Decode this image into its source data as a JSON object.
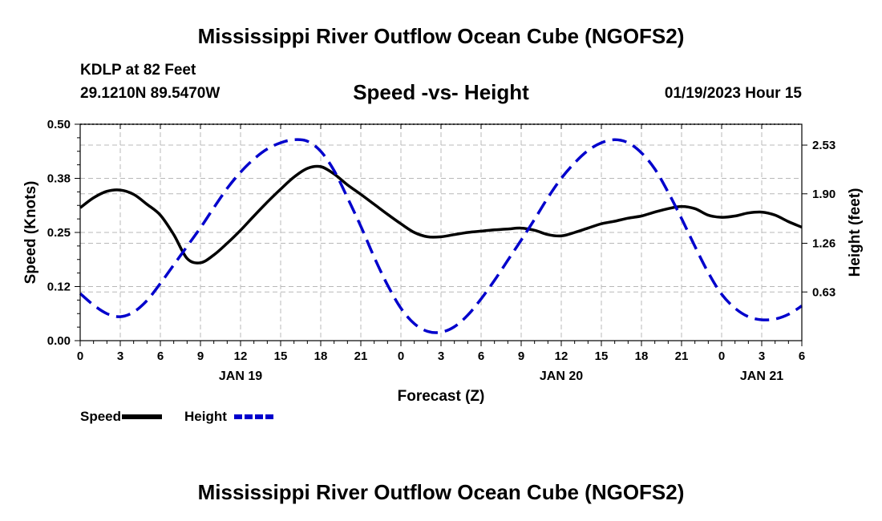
{
  "header": {
    "title": "Mississippi River Outflow Ocean Cube (NGOFS2)",
    "station": "KDLP at 82 Feet",
    "coords": "29.1210N  89.5470W",
    "subtitle": "Speed -vs- Height",
    "timestamp": "01/19/2023 Hour 15"
  },
  "footer": {
    "title": "Mississippi River Outflow Ocean Cube (NGOFS2)"
  },
  "chart_data": {
    "type": "line",
    "xlabel": "Forecast (Z)",
    "x_range": [
      0,
      54
    ],
    "x_ticks": [
      {
        "x": 0,
        "label": "0"
      },
      {
        "x": 3,
        "label": "3"
      },
      {
        "x": 6,
        "label": "6"
      },
      {
        "x": 9,
        "label": "9"
      },
      {
        "x": 12,
        "label": "12"
      },
      {
        "x": 15,
        "label": "15"
      },
      {
        "x": 18,
        "label": "18"
      },
      {
        "x": 21,
        "label": "21"
      },
      {
        "x": 24,
        "label": "0"
      },
      {
        "x": 27,
        "label": "3"
      },
      {
        "x": 30,
        "label": "6"
      },
      {
        "x": 33,
        "label": "9"
      },
      {
        "x": 36,
        "label": "12"
      },
      {
        "x": 39,
        "label": "15"
      },
      {
        "x": 42,
        "label": "18"
      },
      {
        "x": 45,
        "label": "21"
      },
      {
        "x": 48,
        "label": "0"
      },
      {
        "x": 51,
        "label": "3"
      },
      {
        "x": 54,
        "label": "6"
      }
    ],
    "date_labels": [
      {
        "x": 12,
        "label": "JAN 19"
      },
      {
        "x": 36,
        "label": "JAN 20"
      },
      {
        "x": 51,
        "label": "JAN 21"
      }
    ],
    "y_left": {
      "label": "Speed (Knots)",
      "range": [
        0,
        0.5
      ],
      "ticks": [
        0.0,
        0.125,
        0.25,
        0.375,
        0.5
      ],
      "tick_labels": [
        "0.00",
        "0.12",
        "0.25",
        "0.38",
        "0.50"
      ]
    },
    "y_right": {
      "label": "Height (feet)",
      "range": [
        0,
        2.8
      ],
      "ticks": [
        0.63,
        1.26,
        1.9,
        2.53
      ],
      "tick_labels": [
        "0.63",
        "1.26",
        "1.90",
        "2.53"
      ]
    },
    "grid": true,
    "legend": [
      {
        "name": "Speed",
        "color": "#000000",
        "dash": "solid"
      },
      {
        "name": "Height",
        "color": "#0000cc",
        "dash": "dashed"
      }
    ],
    "series": [
      {
        "name": "Speed",
        "axis": "left",
        "color": "#000000",
        "x": [
          0,
          1,
          2,
          3,
          4,
          5,
          6,
          7,
          8,
          9,
          10,
          11,
          12,
          13,
          14,
          15,
          16,
          17,
          18,
          19,
          20,
          21,
          22,
          23,
          24,
          25,
          26,
          27,
          28,
          29,
          30,
          31,
          32,
          33,
          34,
          35,
          36,
          37,
          38,
          39,
          40,
          41,
          42,
          43,
          44,
          45,
          46,
          47,
          48,
          49,
          50,
          51,
          52,
          53,
          54
        ],
        "y": [
          0.307,
          0.33,
          0.345,
          0.348,
          0.338,
          0.315,
          0.29,
          0.245,
          0.19,
          0.18,
          0.198,
          0.225,
          0.255,
          0.288,
          0.32,
          0.35,
          0.378,
          0.398,
          0.402,
          0.385,
          0.36,
          0.338,
          0.315,
          0.292,
          0.27,
          0.25,
          0.24,
          0.24,
          0.245,
          0.25,
          0.253,
          0.256,
          0.258,
          0.26,
          0.255,
          0.245,
          0.242,
          0.25,
          0.26,
          0.27,
          0.276,
          0.283,
          0.288,
          0.297,
          0.305,
          0.31,
          0.305,
          0.29,
          0.285,
          0.288,
          0.295,
          0.297,
          0.29,
          0.275,
          0.262
        ]
      },
      {
        "name": "Height",
        "axis": "right",
        "color": "#0000cc",
        "x": [
          0,
          1,
          2,
          3,
          4,
          5,
          6,
          7,
          8,
          9,
          10,
          11,
          12,
          13,
          14,
          15,
          16,
          17,
          18,
          19,
          20,
          21,
          22,
          23,
          24,
          25,
          26,
          27,
          28,
          29,
          30,
          31,
          32,
          33,
          34,
          35,
          36,
          37,
          38,
          39,
          40,
          41,
          42,
          43,
          44,
          45,
          46,
          47,
          48,
          49,
          50,
          51,
          52,
          53,
          54
        ],
        "y": [
          0.61,
          0.46,
          0.35,
          0.31,
          0.37,
          0.52,
          0.74,
          0.98,
          1.22,
          1.46,
          1.72,
          1.97,
          2.18,
          2.35,
          2.48,
          2.56,
          2.6,
          2.58,
          2.45,
          2.2,
          1.85,
          1.48,
          1.08,
          0.72,
          0.42,
          0.22,
          0.12,
          0.11,
          0.18,
          0.33,
          0.54,
          0.78,
          1.04,
          1.3,
          1.57,
          1.85,
          2.1,
          2.3,
          2.46,
          2.56,
          2.6,
          2.56,
          2.43,
          2.22,
          1.92,
          1.58,
          1.22,
          0.88,
          0.6,
          0.42,
          0.31,
          0.27,
          0.28,
          0.34,
          0.45
        ]
      }
    ]
  }
}
